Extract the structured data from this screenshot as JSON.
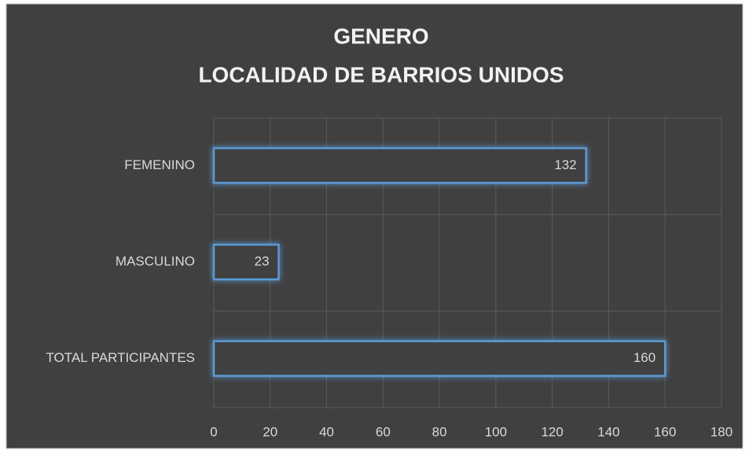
{
  "chart_data": {
    "type": "bar",
    "orientation": "horizontal",
    "title": "GENERO",
    "subtitle": "LOCALIDAD DE BARRIOS UNIDOS",
    "categories": [
      "FEMENINO",
      "MASCULINO",
      "TOTAL PARTICIPANTES"
    ],
    "values": [
      132,
      23,
      160
    ],
    "color": "#5b9bd5",
    "xlim": [
      0,
      180
    ],
    "xticks": [
      0,
      20,
      40,
      60,
      80,
      100,
      120,
      140,
      160,
      180
    ],
    "grid": true
  }
}
